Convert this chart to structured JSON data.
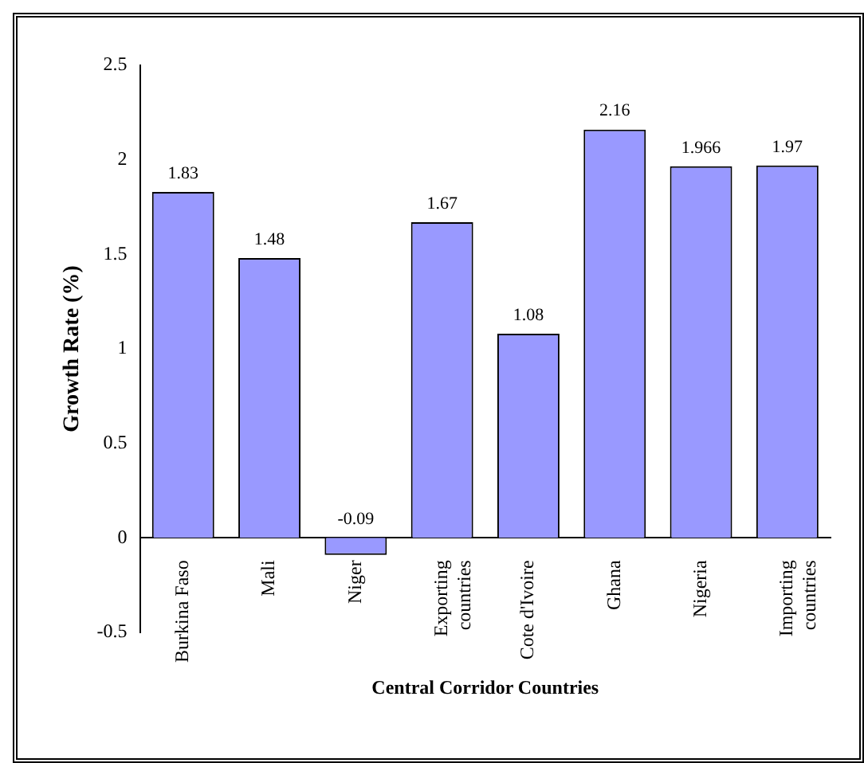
{
  "chart_data": {
    "type": "bar",
    "xlabel": "Central Corridor Countries",
    "ylabel": "Growth Rate (%)",
    "categories": [
      "Burkina Faso",
      "Mali",
      "Niger",
      "Exporting\ncountries",
      "Cote d'Ivoire",
      "Ghana",
      "Nigeria",
      "Importing\ncountries"
    ],
    "values": [
      1.83,
      1.48,
      -0.09,
      1.67,
      1.08,
      2.16,
      1.966,
      1.97
    ],
    "color": "#9999ff",
    "ylim": [
      -0.5,
      2.5
    ],
    "yticks": [
      -0.5,
      0,
      0.5,
      1,
      1.5,
      2,
      2.5
    ],
    "data_labels": true,
    "grid": false,
    "legend": false
  }
}
